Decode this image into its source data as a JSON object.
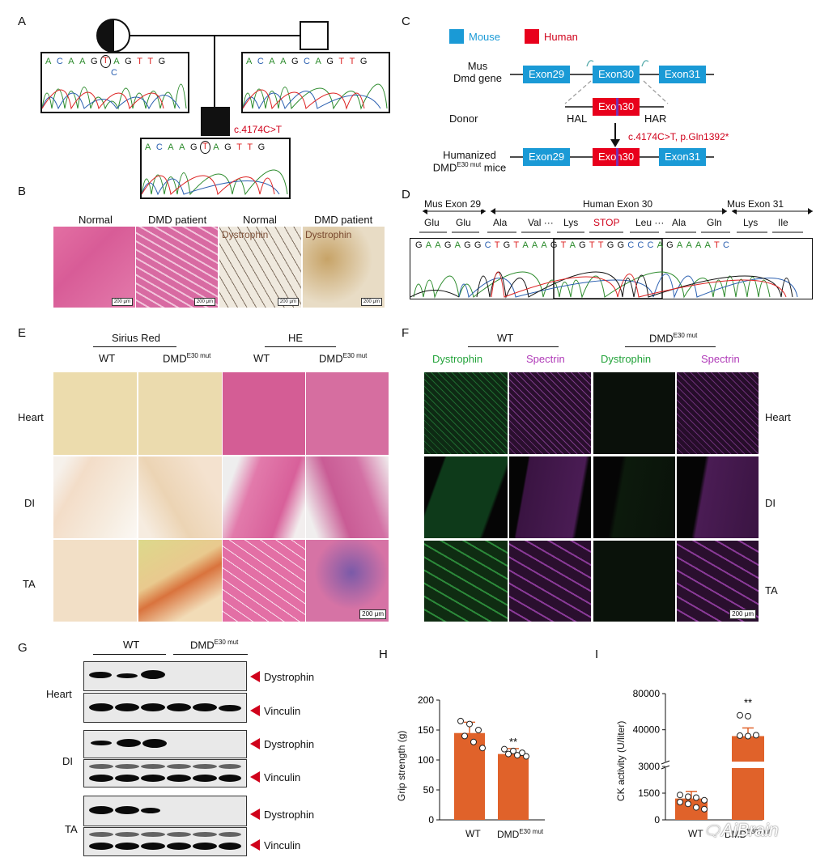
{
  "panels": {
    "A": "A",
    "B": "B",
    "C": "C",
    "D": "D",
    "E": "E",
    "F": "F",
    "G": "G",
    "H": "H",
    "I": "I"
  },
  "panelA": {
    "seq_left": [
      "A",
      "C",
      "A",
      "A",
      "G",
      "T",
      "A",
      "G",
      "T",
      "T",
      "G"
    ],
    "seq_right": [
      "A",
      "C",
      "A",
      "A",
      "G",
      "C",
      "A",
      "G",
      "T",
      "T",
      "G"
    ],
    "seq_bottom": [
      "A",
      "C",
      "A",
      "A",
      "G",
      "T",
      "A",
      "G",
      "T",
      "T",
      "G"
    ],
    "alt_base": "C",
    "mutation": "c.4174C>T"
  },
  "panelB": {
    "headers": [
      "Normal",
      "DMD patient",
      "Normal",
      "DMD patient"
    ],
    "stain_label": "Dystrophin",
    "scale": "200 μm"
  },
  "panelC": {
    "legend_mouse": "Mouse",
    "legend_human": "Human",
    "row1_label_1": "Mus",
    "row1_label_2": "Dmd gene",
    "row2_label": "Donor",
    "row3_label_1": "Humanized",
    "row3_label_2": "DMD",
    "row3_label_sup": "E30 mut",
    "row3_label_3": " mice",
    "exon29": "Exon29",
    "exon30": "Exon30",
    "exon31": "Exon31",
    "hal": "HAL",
    "har": "HAR",
    "mutation": "c.4174C>T, p.Gln1392*"
  },
  "panelD": {
    "region1": "Mus Exon 29",
    "region2": "Human Exon 30",
    "region3": "Mus Exon 31",
    "aa": [
      "Glu",
      "Glu",
      "Ala",
      "Val ···",
      "Lys",
      "STOP",
      "Leu ···",
      "Ala",
      "Gln",
      "Lys",
      "Ile"
    ],
    "seq": [
      "G",
      "A",
      "A",
      "G",
      "A",
      "G",
      "G",
      "C",
      "T",
      "G",
      "T",
      "A",
      "A",
      "A",
      "G",
      "T",
      "A",
      "G",
      "T",
      "T",
      "G",
      "G",
      "C",
      "C",
      "C",
      "A",
      "G",
      "A",
      "A",
      "A",
      "A",
      "T",
      "C"
    ]
  },
  "panelE": {
    "group1": "Sirius Red",
    "group2": "HE",
    "wt": "WT",
    "mut": "DMD",
    "mut_sup": "E30 mut",
    "rows": [
      "Heart",
      "DI",
      "TA"
    ],
    "scale": "200 μm"
  },
  "panelF": {
    "wt": "WT",
    "mut": "DMD",
    "mut_sup": "E30 mut",
    "col_labels": [
      "Dystrophin",
      "Spectrin",
      "Dystrophin",
      "Spectrin"
    ],
    "rows": [
      "Heart",
      "DI",
      "TA"
    ],
    "scale": "200 μm"
  },
  "panelG": {
    "wt": "WT",
    "mut": "DMD",
    "mut_sup": "E30 mut",
    "tissues": [
      "Heart",
      "DI",
      "TA"
    ],
    "band_dys": "Dystrophin",
    "band_vin": "Vinculin"
  },
  "colors": {
    "bar": "#e0622a",
    "mouse": "#1a9ad6",
    "human": "#e8001c",
    "arrow": "#d0021b"
  },
  "chart_data": [
    {
      "type": "bar",
      "categories": [
        "WT",
        "DMD E30 mut"
      ],
      "values": [
        145,
        110
      ],
      "ylabel": "Grip strength (g)",
      "yticks": [
        "0",
        "50",
        "100",
        "150",
        "200"
      ],
      "ylim": [
        0,
        200
      ],
      "points": [
        [
          165,
          160,
          150,
          140,
          130,
          120
        ],
        [
          118,
          115,
          112,
          110,
          108,
          106
        ]
      ],
      "significance": "**",
      "xlabels": [
        "WT",
        "DMD"
      ],
      "xlabel_sup": "E30 mut"
    },
    {
      "type": "bar",
      "categories": [
        "WT",
        "DMD E30 mut"
      ],
      "values": [
        1200,
        33000
      ],
      "ylabel": "CK activity (U/liter)",
      "yticks": [
        "0",
        "1500",
        "3000",
        "40000",
        "80000"
      ],
      "significance": "**",
      "xlabels": [
        "WT",
        "DMD"
      ],
      "xlabel_sup": "E30 mut"
    }
  ],
  "watermark": "AiBrain"
}
